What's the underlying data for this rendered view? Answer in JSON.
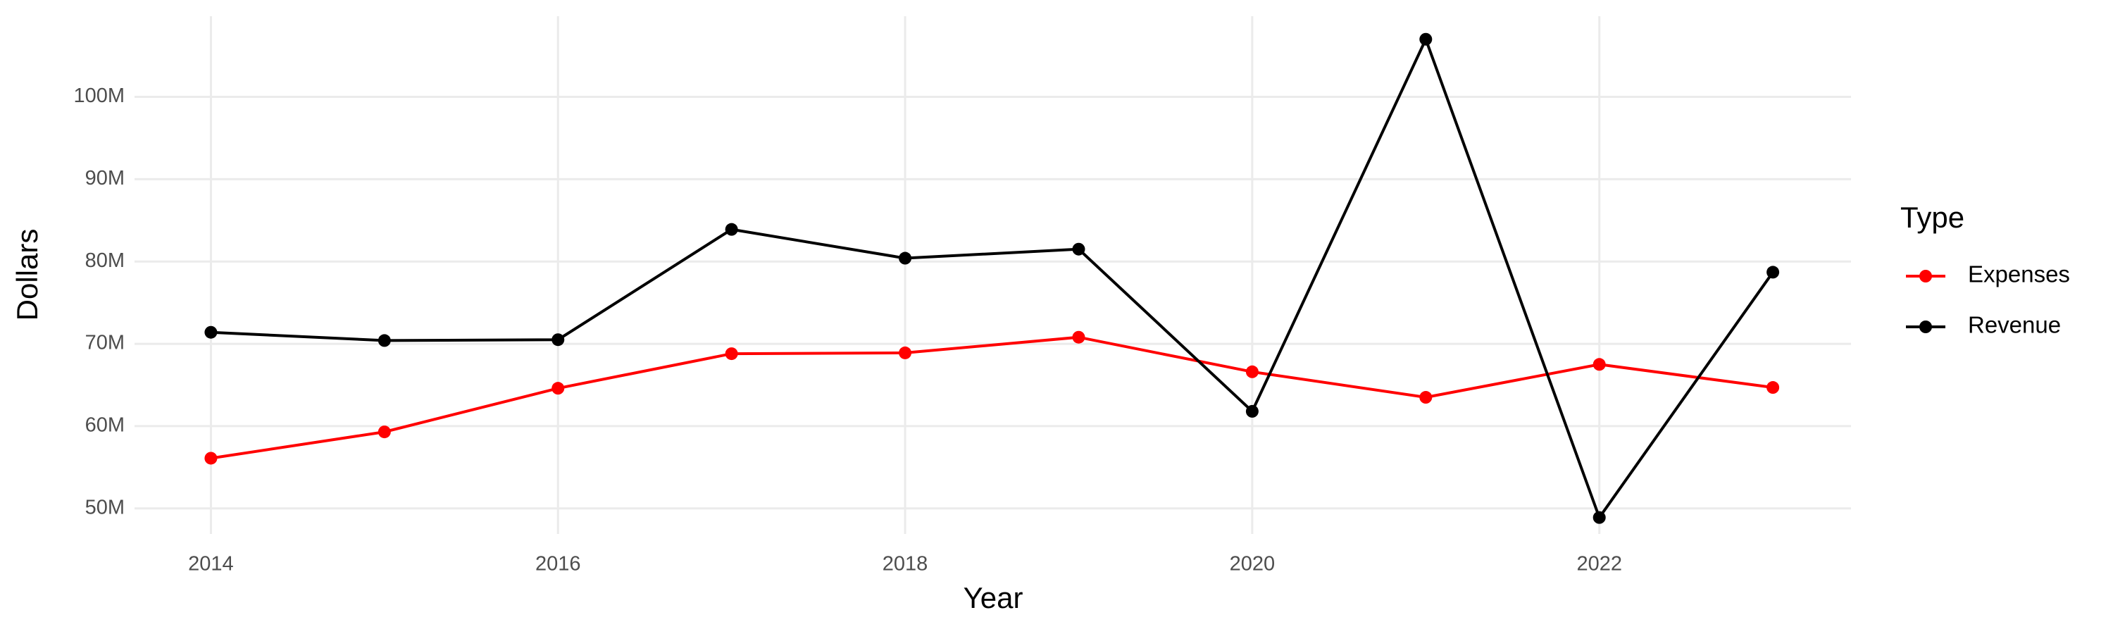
{
  "chart_data": {
    "type": "line",
    "x_label": "Year",
    "y_label": "Dollars",
    "legend_title": "Type",
    "x": [
      2014,
      2015,
      2016,
      2017,
      2018,
      2019,
      2020,
      2021,
      2022,
      2023
    ],
    "series": [
      {
        "name": "Expenses",
        "color": "#ff0000",
        "values": [
          56100000,
          59300000,
          64600000,
          68800000,
          68900000,
          70800000,
          66600000,
          63500000,
          67500000,
          64700000
        ]
      },
      {
        "name": "Revenue",
        "color": "#000000",
        "values": [
          71400000,
          70400000,
          70500000,
          83900000,
          80400000,
          81500000,
          61800000,
          107000000,
          48900000,
          78700000
        ]
      }
    ],
    "xlim": [
      2013.56,
      2023.45
    ],
    "xticks": [
      2014,
      2016,
      2018,
      2020,
      2022
    ],
    "ylim": [
      46900000,
      109800000
    ],
    "yticks": [
      {
        "value": 50000000,
        "label": "50M"
      },
      {
        "value": 60000000,
        "label": "60M"
      },
      {
        "value": 70000000,
        "label": "70M"
      },
      {
        "value": 80000000,
        "label": "80M"
      },
      {
        "value": 90000000,
        "label": "90M"
      },
      {
        "value": 100000000,
        "label": "100M"
      }
    ],
    "grid": true,
    "legend_position": "right"
  }
}
